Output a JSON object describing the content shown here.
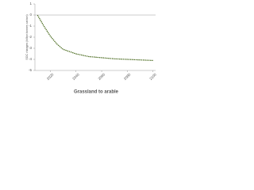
{
  "chart_data": {
    "type": "line",
    "title": "Grassland to arable",
    "y_label": "SOC changes (billion tonnes carbon)",
    "x": [
      2010,
      2015,
      2020,
      2025,
      2030,
      2035,
      2040,
      2050,
      2060,
      2070,
      2080,
      2090,
      2100
    ],
    "series": [
      {
        "name": "Grassland to arable",
        "color": "#4a6b1f",
        "values": [
          0,
          -1.0,
          -1.9,
          -2.6,
          -3.1,
          -3.3,
          -3.5,
          -3.75,
          -3.85,
          -3.95,
          -4.0,
          -4.05,
          -4.1
        ]
      }
    ],
    "xlim": [
      2008,
      2102
    ],
    "xticks": [
      2020,
      2040,
      2060,
      2080,
      2100
    ],
    "ylim": [
      -5,
      1
    ],
    "yticks": [
      -5,
      -4,
      -3,
      -2,
      -1,
      0,
      1
    ]
  }
}
